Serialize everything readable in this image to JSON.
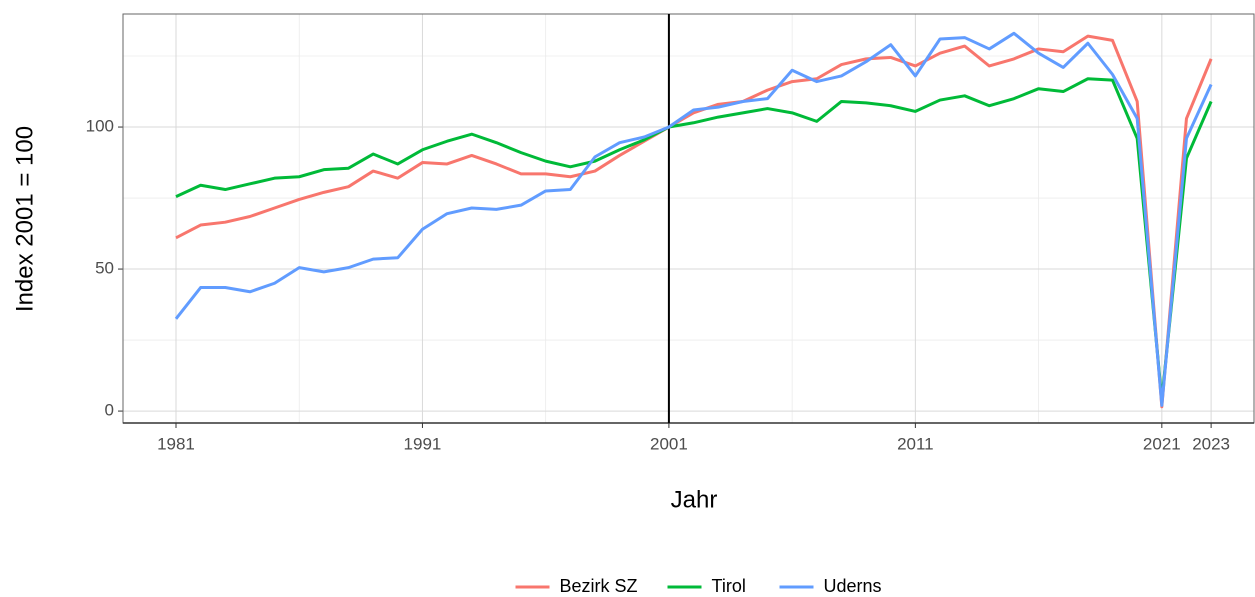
{
  "chart_data": {
    "type": "line",
    "x_label": "Jahr",
    "y_label": "Index 2001 = 100",
    "x": [
      1981,
      1982,
      1983,
      1984,
      1985,
      1986,
      1987,
      1988,
      1989,
      1990,
      1991,
      1992,
      1993,
      1994,
      1995,
      1996,
      1997,
      1998,
      1999,
      2000,
      2001,
      2002,
      2003,
      2004,
      2005,
      2006,
      2007,
      2008,
      2009,
      2010,
      2011,
      2012,
      2013,
      2014,
      2015,
      2016,
      2017,
      2018,
      2019,
      2020,
      2021,
      2022,
      2023
    ],
    "series": [
      {
        "name": "Bezirk SZ",
        "color": "#F8766D",
        "values": [
          61,
          65.5,
          66.5,
          68.5,
          71.5,
          74.5,
          77,
          79,
          84.5,
          82,
          87.5,
          87,
          90,
          87,
          83.5,
          83.5,
          82.5,
          84.5,
          90,
          95,
          100,
          105,
          108,
          109,
          113,
          116,
          117,
          122,
          124,
          124.5,
          121.5,
          126,
          128.5,
          121.5,
          124,
          127.5,
          126.5,
          132,
          130.5,
          109,
          1.5,
          103,
          124
        ]
      },
      {
        "name": "Tirol",
        "color": "#00BA38",
        "values": [
          75.5,
          79.5,
          78,
          80,
          82,
          82.5,
          85,
          85.5,
          90.5,
          87,
          92,
          95,
          97.5,
          94.5,
          91,
          88,
          86,
          88,
          92,
          95.5,
          100,
          101.5,
          103.5,
          105,
          106.5,
          105,
          102,
          109,
          108.5,
          107.5,
          105.5,
          109.5,
          111,
          107.5,
          110,
          113.5,
          112.5,
          117,
          116.5,
          96,
          4,
          89,
          109
        ]
      },
      {
        "name": "Uderns",
        "color": "#619CFF",
        "values": [
          32.5,
          43.5,
          43.5,
          42,
          45,
          50.5,
          49,
          50.5,
          53.5,
          54,
          64,
          69.5,
          71.5,
          71,
          72.5,
          77.5,
          78,
          89.5,
          94.5,
          96.5,
          100,
          106,
          107,
          109,
          110,
          120,
          116,
          118,
          123,
          129,
          118,
          131,
          131.5,
          127.5,
          133,
          126,
          121,
          129.5,
          118.5,
          103,
          2,
          96,
          115
        ]
      }
    ],
    "xlim": [
      1978.85,
      2024.74
    ],
    "ylim": [
      -4.2,
      139.8
    ],
    "xticks": [
      1981,
      1991,
      2001,
      2011,
      2021,
      2023
    ],
    "yticks": [
      0,
      50,
      100
    ],
    "xminor": [
      1986,
      1996,
      2006,
      2016
    ],
    "yminor": [
      25,
      75,
      125
    ],
    "vline": 2001,
    "grid": true,
    "legend": "bottom"
  }
}
